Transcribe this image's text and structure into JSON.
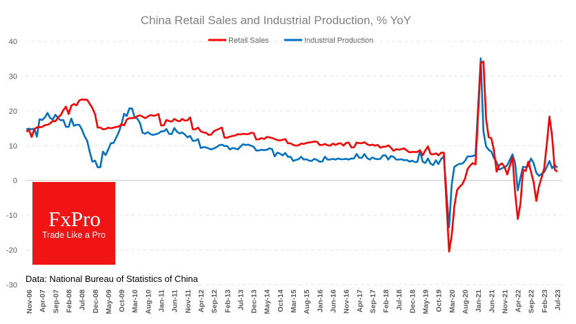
{
  "chart_data": {
    "type": "line",
    "title": "China Retail Sales and Industrial Production, % YoY",
    "xlabel": "",
    "ylabel": "",
    "ylim": [
      -30,
      40
    ],
    "yticks": [
      40,
      30,
      20,
      10,
      0,
      -10,
      -20,
      -30
    ],
    "grid": true,
    "legend": "top",
    "x_start": "2006-10",
    "x_frequency": "monthly",
    "x_tick_labels": [
      "Nov-06",
      "Apr-07",
      "Sep-07",
      "Feb-08",
      "Jul-08",
      "Dec-08",
      "May-09",
      "Oct-09",
      "Mar-10",
      "Aug-10",
      "Jan-11",
      "Jun-11",
      "Nov-11",
      "Apr-12",
      "Sep-12",
      "Feb-13",
      "Jul-13",
      "Dec-13",
      "May-14",
      "Oct-14",
      "Mar-15",
      "Aug-15",
      "Jan-16",
      "Jun-16",
      "Nov-16",
      "Apr-17",
      "Sep-17",
      "Feb-18",
      "Jul-18",
      "Dec-18",
      "May-19",
      "Oct-19",
      "Mar-20",
      "Aug-20",
      "Jan-21",
      "Jun-21",
      "Nov-21",
      "Apr-22",
      "Sep-22",
      "Feb-23",
      "Jul-23"
    ],
    "series": [
      {
        "name": "Retail Sales",
        "color": "#ff0000",
        "values": [
          14.0,
          14.5,
          12.5,
          14.7,
          15.3,
          15.3,
          15.4,
          15.9,
          16.0,
          16.4,
          17.1,
          17.0,
          18.1,
          18.8,
          20.2,
          21.2,
          19.1,
          21.5,
          22.0,
          21.6,
          23.0,
          23.3,
          23.2,
          23.2,
          22.0,
          20.8,
          19.0,
          15.2,
          15.2,
          14.7,
          14.8,
          15.2,
          15.0,
          15.2,
          15.4,
          15.5,
          16.2,
          15.8,
          17.5,
          17.9,
          17.9,
          18.0,
          18.5,
          18.7,
          18.3,
          17.9,
          18.4,
          18.8,
          18.6,
          18.7,
          19.1,
          15.8,
          15.8,
          17.4,
          17.1,
          16.9,
          17.7,
          17.2,
          17.0,
          17.7,
          17.2,
          17.3,
          18.1,
          14.7,
          14.7,
          15.2,
          14.1,
          13.8,
          13.7,
          13.1,
          13.2,
          14.2,
          14.5,
          14.9,
          15.2,
          12.3,
          12.3,
          12.6,
          12.8,
          12.9,
          13.3,
          13.2,
          13.4,
          13.3,
          13.3,
          13.7,
          13.6,
          11.8,
          11.8,
          12.2,
          11.9,
          12.5,
          12.4,
          12.2,
          11.9,
          11.6,
          11.5,
          11.7,
          11.9,
          10.7,
          10.7,
          10.2,
          10.0,
          10.1,
          10.6,
          10.5,
          10.8,
          10.9,
          11.0,
          11.2,
          11.1,
          10.2,
          10.2,
          10.5,
          10.1,
          10.0,
          10.6,
          10.2,
          10.6,
          10.7,
          10.0,
          10.8,
          10.9,
          9.5,
          9.5,
          10.9,
          10.7,
          10.7,
          11.0,
          10.4,
          10.1,
          10.3,
          10.0,
          10.2,
          9.4,
          9.7,
          9.7,
          10.1,
          9.4,
          8.5,
          9.0,
          8.8,
          9.0,
          9.2,
          8.6,
          8.1,
          8.2,
          8.2,
          8.2,
          8.7,
          7.2,
          8.6,
          9.8,
          7.6,
          7.5,
          7.8,
          7.2,
          8.0,
          8.0,
          null,
          -20.5,
          -15.8,
          -7.5,
          -2.8,
          -1.8,
          -1.1,
          0.5,
          3.3,
          4.3,
          5.0,
          4.6,
          null,
          33.8,
          34.2,
          17.7,
          12.4,
          12.1,
          8.5,
          2.5,
          4.4,
          4.9,
          3.9,
          1.7,
          null,
          6.7,
          -3.5,
          -11.1,
          -6.7,
          3.1,
          2.7,
          5.4,
          2.5,
          -0.5,
          -5.9,
          -1.8,
          null,
          3.5,
          10.6,
          18.4,
          12.7,
          3.1,
          2.5
        ]
      },
      {
        "name": "Industrial Production",
        "color": "#0070c0",
        "values": [
          14.7,
          14.9,
          14.7,
          14.9,
          12.6,
          17.6,
          17.4,
          18.1,
          19.4,
          18.0,
          17.5,
          18.9,
          17.9,
          17.3,
          17.4,
          15.4,
          15.4,
          17.8,
          15.7,
          16.0,
          16.0,
          14.7,
          12.8,
          11.4,
          8.2,
          5.4,
          5.7,
          3.8,
          3.8,
          8.3,
          7.3,
          8.9,
          10.7,
          10.8,
          12.3,
          13.9,
          16.1,
          19.2,
          18.5,
          20.7,
          20.7,
          18.1,
          17.8,
          16.5,
          13.7,
          13.4,
          13.9,
          13.3,
          13.1,
          13.3,
          13.5,
          14.1,
          14.1,
          14.8,
          13.4,
          13.3,
          15.1,
          14.0,
          13.5,
          13.8,
          13.2,
          12.4,
          12.8,
          11.4,
          11.4,
          11.9,
          9.3,
          9.6,
          9.5,
          9.2,
          8.9,
          9.2,
          9.6,
          10.1,
          10.3,
          9.9,
          9.9,
          8.9,
          9.3,
          9.2,
          8.9,
          9.7,
          10.4,
          10.2,
          10.3,
          10.0,
          9.7,
          8.6,
          8.6,
          8.8,
          8.7,
          8.8,
          9.2,
          9.0,
          6.9,
          8.0,
          7.7,
          7.2,
          7.9,
          6.8,
          6.8,
          5.6,
          5.9,
          6.1,
          6.8,
          6.0,
          6.1,
          5.7,
          5.6,
          6.2,
          5.9,
          5.4,
          5.4,
          6.8,
          6.0,
          6.0,
          6.2,
          6.0,
          6.3,
          6.1,
          6.1,
          6.2,
          6.0,
          6.3,
          6.3,
          7.6,
          6.5,
          6.5,
          7.6,
          6.4,
          6.0,
          6.6,
          6.2,
          6.1,
          6.2,
          7.2,
          7.2,
          6.0,
          7.0,
          6.8,
          6.0,
          6.0,
          6.1,
          5.8,
          5.9,
          5.4,
          5.7,
          5.3,
          5.3,
          8.5,
          5.4,
          5.0,
          6.3,
          4.8,
          4.4,
          5.8,
          4.7,
          6.2,
          6.9,
          null,
          -13.5,
          -1.1,
          3.9,
          4.4,
          4.8,
          4.8,
          5.6,
          6.9,
          6.9,
          7.0,
          7.3,
          null,
          35.1,
          14.1,
          9.8,
          8.8,
          8.3,
          6.4,
          5.3,
          3.1,
          3.5,
          3.8,
          4.3,
          null,
          7.5,
          5.0,
          -2.9,
          0.7,
          3.9,
          3.8,
          4.2,
          6.3,
          5.0,
          2.2,
          1.3,
          null,
          2.4,
          3.9,
          5.6,
          3.5,
          4.4,
          3.7
        ]
      }
    ],
    "source": "Data: National Bureau of Statistics of China"
  },
  "logo": {
    "brand": "FxPro",
    "tagline": "Trade Like a Pro",
    "color": "#f01414"
  }
}
